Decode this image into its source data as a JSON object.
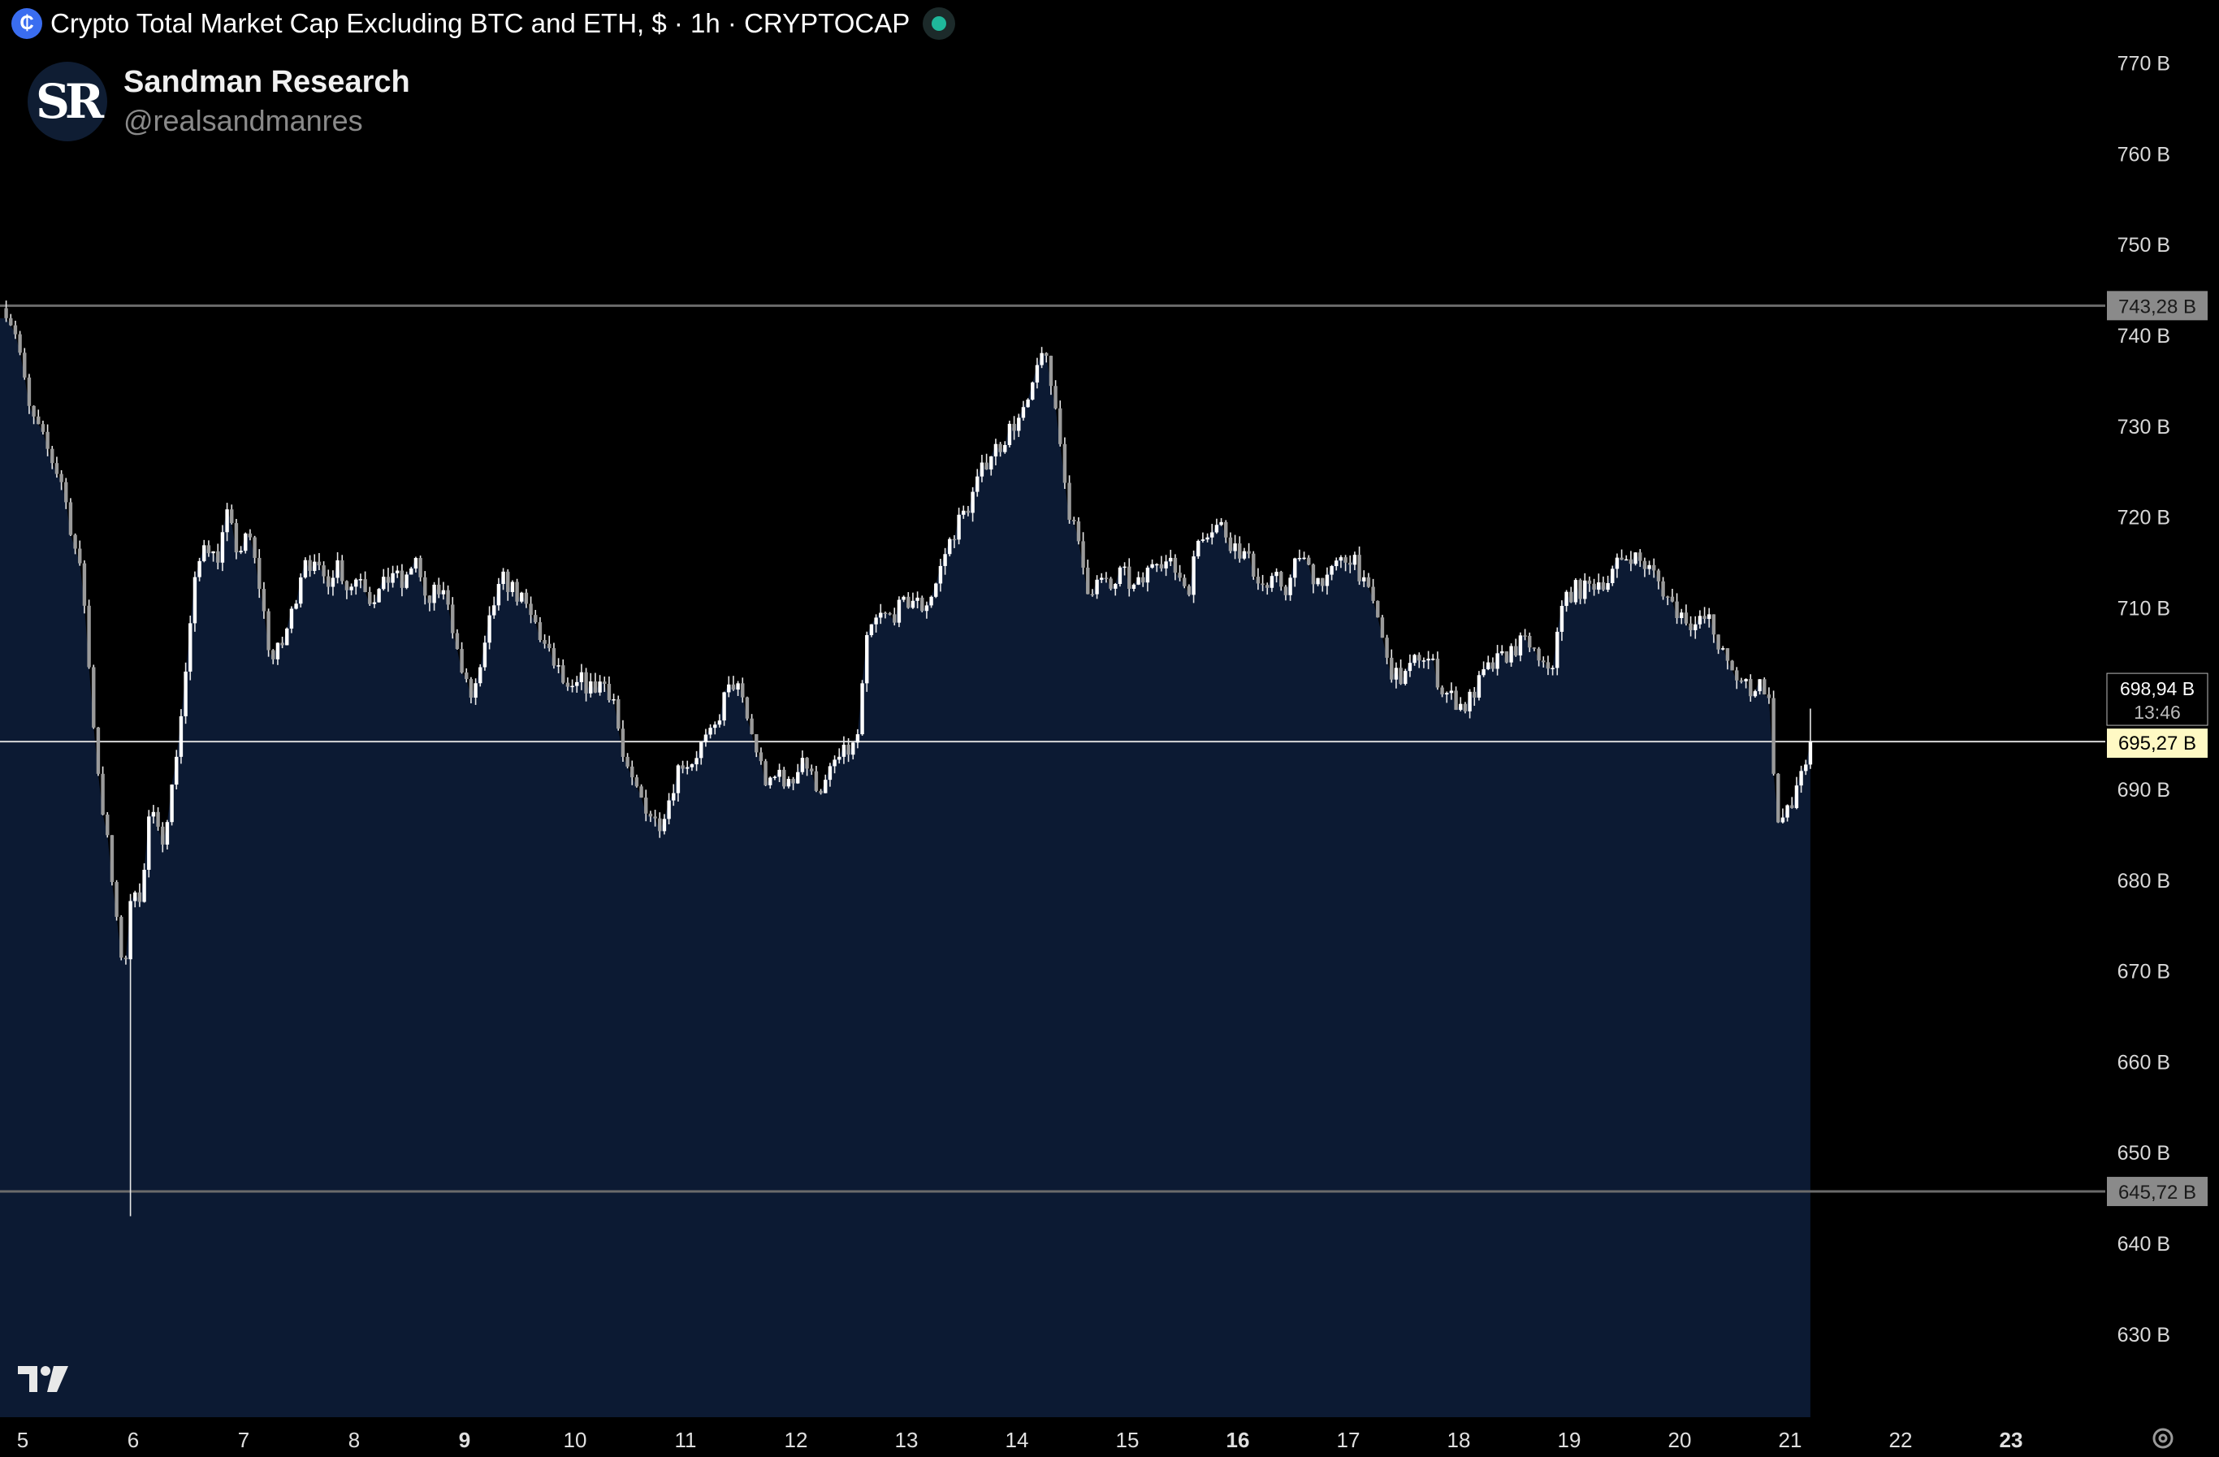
{
  "header": {
    "symbol_icon": "cryptocap-icon",
    "title": "Crypto Total Market Cap Excluding BTC and ETH, $ · 1h · CRYPTOCAP",
    "live_indicator_color": "#1fb89b"
  },
  "watermark": {
    "logo_text": "SR",
    "name": "Sandman Research",
    "handle": "@realsandmanres"
  },
  "colors": {
    "background": "#000000",
    "area_fill": "#0c1a33",
    "candle": "#e8e8e8",
    "level_line": "#6b6b6b",
    "current_line": "#d8d8d8",
    "price_label_bg": "#fff9c4"
  },
  "chart_data": {
    "type": "candlestick",
    "title": "Crypto Total Market Cap Excluding BTC and ETH, $ · 1h · CRYPTOCAP",
    "unit": "B",
    "x_ticks": [
      {
        "day": 5,
        "label": "5",
        "bold": false
      },
      {
        "day": 6,
        "label": "6",
        "bold": false
      },
      {
        "day": 7,
        "label": "7",
        "bold": false
      },
      {
        "day": 8,
        "label": "8",
        "bold": false
      },
      {
        "day": 9,
        "label": "9",
        "bold": true
      },
      {
        "day": 10,
        "label": "10",
        "bold": false
      },
      {
        "day": 11,
        "label": "11",
        "bold": false
      },
      {
        "day": 12,
        "label": "12",
        "bold": false
      },
      {
        "day": 13,
        "label": "13",
        "bold": false
      },
      {
        "day": 14,
        "label": "14",
        "bold": false
      },
      {
        "day": 15,
        "label": "15",
        "bold": false
      },
      {
        "day": 16,
        "label": "16",
        "bold": true
      },
      {
        "day": 17,
        "label": "17",
        "bold": false
      },
      {
        "day": 18,
        "label": "18",
        "bold": false
      },
      {
        "day": 19,
        "label": "19",
        "bold": false
      },
      {
        "day": 20,
        "label": "20",
        "bold": false
      },
      {
        "day": 21,
        "label": "21",
        "bold": false
      },
      {
        "day": 22,
        "label": "22",
        "bold": false
      },
      {
        "day": 23,
        "label": "23",
        "bold": true
      }
    ],
    "y_ticks": [
      {
        "value": 770,
        "label": "770 B"
      },
      {
        "value": 760,
        "label": "760 B"
      },
      {
        "value": 750,
        "label": "750 B"
      },
      {
        "value": 740,
        "label": "740 B"
      },
      {
        "value": 730,
        "label": "730 B"
      },
      {
        "value": 720,
        "label": "720 B"
      },
      {
        "value": 710,
        "label": "710 B"
      },
      {
        "value": 690,
        "label": "690 B"
      },
      {
        "value": 680,
        "label": "680 B"
      },
      {
        "value": 670,
        "label": "670 B"
      },
      {
        "value": 660,
        "label": "660 B"
      },
      {
        "value": 650,
        "label": "650 B"
      },
      {
        "value": 640,
        "label": "640 B"
      },
      {
        "value": 630,
        "label": "630 B"
      }
    ],
    "levels": [
      {
        "value": 743.28,
        "label": "743,28 B"
      },
      {
        "value": 645.72,
        "label": "645,72 B"
      }
    ],
    "current": {
      "close": 695.27,
      "close_label": "695,27 B",
      "high_label": "698,94 B",
      "countdown": "13:46"
    },
    "anchors": [
      [
        4.85,
        743
      ],
      [
        4.95,
        740
      ],
      [
        5.05,
        732
      ],
      [
        5.2,
        728
      ],
      [
        5.35,
        724
      ],
      [
        5.45,
        718
      ],
      [
        5.55,
        712
      ],
      [
        5.62,
        700
      ],
      [
        5.7,
        690
      ],
      [
        5.78,
        683
      ],
      [
        5.85,
        675
      ],
      [
        5.92,
        670
      ],
      [
        6.0,
        680
      ],
      [
        6.08,
        678
      ],
      [
        6.15,
        688
      ],
      [
        6.25,
        684
      ],
      [
        6.35,
        690
      ],
      [
        6.45,
        700
      ],
      [
        6.55,
        712
      ],
      [
        6.65,
        718
      ],
      [
        6.75,
        715
      ],
      [
        6.85,
        720
      ],
      [
        6.95,
        716
      ],
      [
        7.05,
        718
      ],
      [
        7.15,
        712
      ],
      [
        7.25,
        704
      ],
      [
        7.35,
        706
      ],
      [
        7.45,
        710
      ],
      [
        7.55,
        716
      ],
      [
        7.65,
        714
      ],
      [
        7.75,
        713
      ],
      [
        7.85,
        715
      ],
      [
        7.95,
        712
      ],
      [
        8.05,
        714
      ],
      [
        8.15,
        711
      ],
      [
        8.25,
        712
      ],
      [
        8.35,
        714
      ],
      [
        8.45,
        712
      ],
      [
        8.55,
        716
      ],
      [
        8.65,
        710
      ],
      [
        8.75,
        712
      ],
      [
        8.85,
        711
      ],
      [
        8.95,
        704
      ],
      [
        9.05,
        700
      ],
      [
        9.15,
        703
      ],
      [
        9.25,
        710
      ],
      [
        9.35,
        713
      ],
      [
        9.45,
        712
      ],
      [
        9.55,
        710
      ],
      [
        9.65,
        708
      ],
      [
        9.75,
        705
      ],
      [
        9.85,
        703
      ],
      [
        9.95,
        700
      ],
      [
        10.05,
        702
      ],
      [
        10.15,
        701
      ],
      [
        10.25,
        702
      ],
      [
        10.35,
        700
      ],
      [
        10.45,
        692
      ],
      [
        10.55,
        690
      ],
      [
        10.65,
        688
      ],
      [
        10.75,
        686
      ],
      [
        10.85,
        689
      ],
      [
        10.95,
        693
      ],
      [
        11.05,
        693
      ],
      [
        11.15,
        695
      ],
      [
        11.25,
        696
      ],
      [
        11.35,
        700
      ],
      [
        11.45,
        702
      ],
      [
        11.55,
        698
      ],
      [
        11.65,
        694
      ],
      [
        11.75,
        690
      ],
      [
        11.85,
        692
      ],
      [
        11.95,
        690
      ],
      [
        12.05,
        694
      ],
      [
        12.15,
        691
      ],
      [
        12.25,
        690
      ],
      [
        12.35,
        693
      ],
      [
        12.45,
        694
      ],
      [
        12.55,
        695
      ],
      [
        12.65,
        707
      ],
      [
        12.75,
        709
      ],
      [
        12.85,
        709
      ],
      [
        12.95,
        710
      ],
      [
        13.05,
        711
      ],
      [
        13.15,
        710
      ],
      [
        13.25,
        712
      ],
      [
        13.35,
        716
      ],
      [
        13.45,
        719
      ],
      [
        13.55,
        721
      ],
      [
        13.65,
        724
      ],
      [
        13.75,
        727
      ],
      [
        13.85,
        728
      ],
      [
        13.95,
        730
      ],
      [
        14.05,
        731
      ],
      [
        14.15,
        734
      ],
      [
        14.22,
        739
      ],
      [
        14.3,
        735
      ],
      [
        14.38,
        730
      ],
      [
        14.45,
        722
      ],
      [
        14.55,
        717
      ],
      [
        14.65,
        712
      ],
      [
        14.75,
        713
      ],
      [
        14.85,
        712
      ],
      [
        14.95,
        714
      ],
      [
        15.05,
        712
      ],
      [
        15.15,
        713
      ],
      [
        15.25,
        716
      ],
      [
        15.35,
        715
      ],
      [
        15.45,
        714
      ],
      [
        15.55,
        712
      ],
      [
        15.65,
        718
      ],
      [
        15.75,
        719
      ],
      [
        15.85,
        719
      ],
      [
        15.95,
        717
      ],
      [
        16.05,
        716
      ],
      [
        16.15,
        714
      ],
      [
        16.25,
        712
      ],
      [
        16.35,
        713
      ],
      [
        16.45,
        712
      ],
      [
        16.55,
        716
      ],
      [
        16.65,
        714
      ],
      [
        16.75,
        713
      ],
      [
        16.85,
        714
      ],
      [
        16.95,
        715
      ],
      [
        17.05,
        716
      ],
      [
        17.15,
        712
      ],
      [
        17.25,
        710
      ],
      [
        17.35,
        704
      ],
      [
        17.45,
        702
      ],
      [
        17.55,
        703
      ],
      [
        17.65,
        705
      ],
      [
        17.75,
        704
      ],
      [
        17.85,
        701
      ],
      [
        17.95,
        700
      ],
      [
        18.05,
        699
      ],
      [
        18.15,
        701
      ],
      [
        18.25,
        703
      ],
      [
        18.35,
        704
      ],
      [
        18.45,
        705
      ],
      [
        18.55,
        706
      ],
      [
        18.65,
        706
      ],
      [
        18.75,
        703
      ],
      [
        18.85,
        704
      ],
      [
        18.95,
        711
      ],
      [
        19.05,
        712
      ],
      [
        19.15,
        712
      ],
      [
        19.25,
        713
      ],
      [
        19.35,
        713
      ],
      [
        19.45,
        715
      ],
      [
        19.55,
        716
      ],
      [
        19.65,
        715
      ],
      [
        19.75,
        714
      ],
      [
        19.85,
        712
      ],
      [
        19.95,
        710
      ],
      [
        20.05,
        709
      ],
      [
        20.15,
        708
      ],
      [
        20.25,
        709
      ],
      [
        20.35,
        706
      ],
      [
        20.45,
        703
      ],
      [
        20.55,
        702
      ],
      [
        20.65,
        701
      ],
      [
        20.75,
        702
      ],
      [
        20.82,
        699
      ],
      [
        20.88,
        686
      ],
      [
        20.95,
        687
      ],
      [
        21.02,
        688
      ],
      [
        21.08,
        692
      ],
      [
        21.15,
        693
      ],
      [
        21.2,
        697
      ]
    ]
  }
}
